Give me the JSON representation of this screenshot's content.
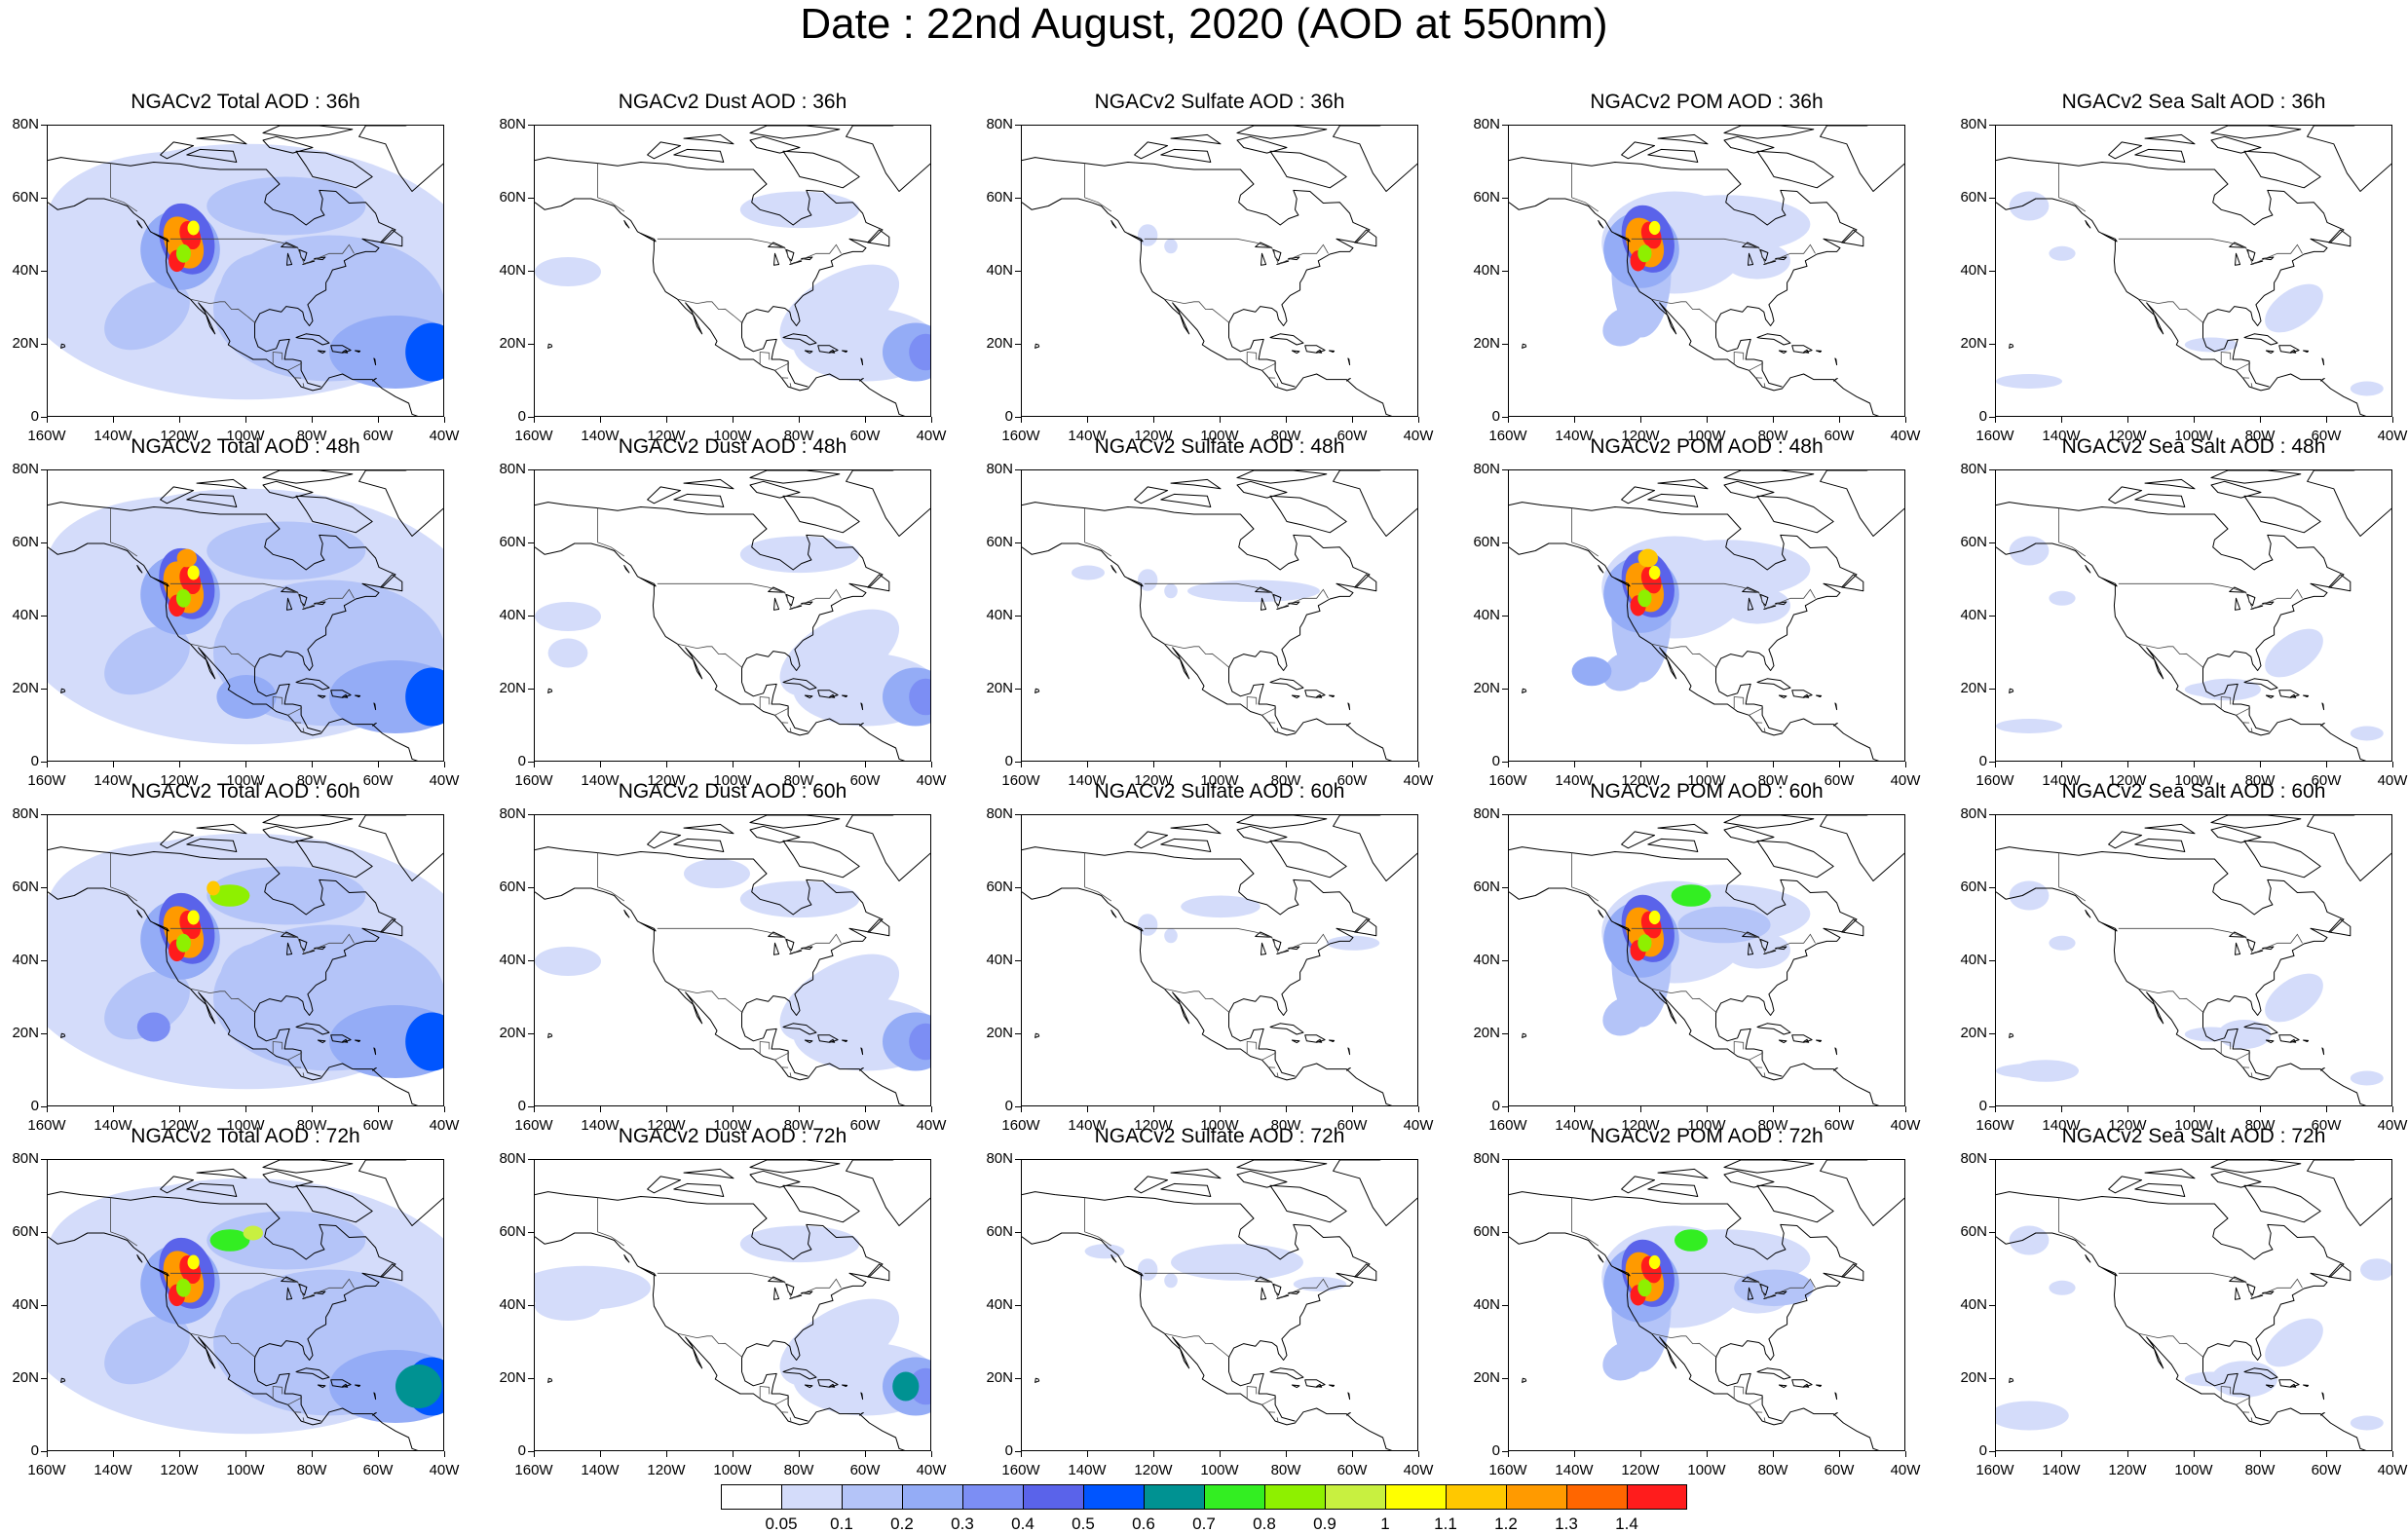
{
  "title": "Date : 22nd August, 2020 (AOD at 550nm)",
  "axes": {
    "lat_labels": [
      "80N",
      "60N",
      "40N",
      "20N",
      "0"
    ],
    "lon_labels": [
      "160W",
      "140W",
      "120W",
      "100W",
      "80W",
      "60W",
      "40W"
    ]
  },
  "panels": [
    {
      "title": "NGACv2 Total AOD : 36h",
      "species": "total",
      "hour": 36
    },
    {
      "title": "NGACv2 Dust AOD : 36h",
      "species": "dust",
      "hour": 36
    },
    {
      "title": "NGACv2 Sulfate AOD : 36h",
      "species": "sulfate",
      "hour": 36
    },
    {
      "title": "NGACv2 POM AOD : 36h",
      "species": "pom",
      "hour": 36
    },
    {
      "title": "NGACv2 Sea Salt AOD : 36h",
      "species": "seasalt",
      "hour": 36
    },
    {
      "title": "NGACv2 Total AOD : 48h",
      "species": "total",
      "hour": 48
    },
    {
      "title": "NGACv2 Dust AOD : 48h",
      "species": "dust",
      "hour": 48
    },
    {
      "title": "NGACv2 Sulfate AOD : 48h",
      "species": "sulfate",
      "hour": 48
    },
    {
      "title": "NGACv2 POM AOD : 48h",
      "species": "pom",
      "hour": 48
    },
    {
      "title": "NGACv2 Sea Salt AOD : 48h",
      "species": "seasalt",
      "hour": 48
    },
    {
      "title": "NGACv2 Total AOD : 60h",
      "species": "total",
      "hour": 60
    },
    {
      "title": "NGACv2 Dust AOD : 60h",
      "species": "dust",
      "hour": 60
    },
    {
      "title": "NGACv2 Sulfate AOD : 60h",
      "species": "sulfate",
      "hour": 60
    },
    {
      "title": "NGACv2 POM AOD : 60h",
      "species": "pom",
      "hour": 60
    },
    {
      "title": "NGACv2 Sea Salt AOD : 60h",
      "species": "seasalt",
      "hour": 60
    },
    {
      "title": "NGACv2 Total AOD : 72h",
      "species": "total",
      "hour": 72
    },
    {
      "title": "NGACv2 Dust AOD : 72h",
      "species": "dust",
      "hour": 72
    },
    {
      "title": "NGACv2 Sulfate AOD : 72h",
      "species": "sulfate",
      "hour": 72
    },
    {
      "title": "NGACv2 POM AOD : 72h",
      "species": "pom",
      "hour": 72
    },
    {
      "title": "NGACv2 Sea Salt  AOD : 72h",
      "species": "seasalt",
      "hour": 72
    }
  ],
  "colorbar": {
    "colors": [
      "#ffffff",
      "#d4dcfa",
      "#b4c4f8",
      "#94acf6",
      "#7c8ef4",
      "#5a63ea",
      "#0055ff",
      "#009292",
      "#33ee22",
      "#8ef000",
      "#c8f040",
      "#ffff00",
      "#ffc800",
      "#ff9a00",
      "#ff6600",
      "#ff1c1c"
    ],
    "labels": [
      "0.05",
      "0.1",
      "0.2",
      "0.3",
      "0.4",
      "0.5",
      "0.6",
      "0.7",
      "0.8",
      "0.9",
      "1",
      "1.1",
      "1.2",
      "1.3",
      "1.4"
    ]
  }
}
